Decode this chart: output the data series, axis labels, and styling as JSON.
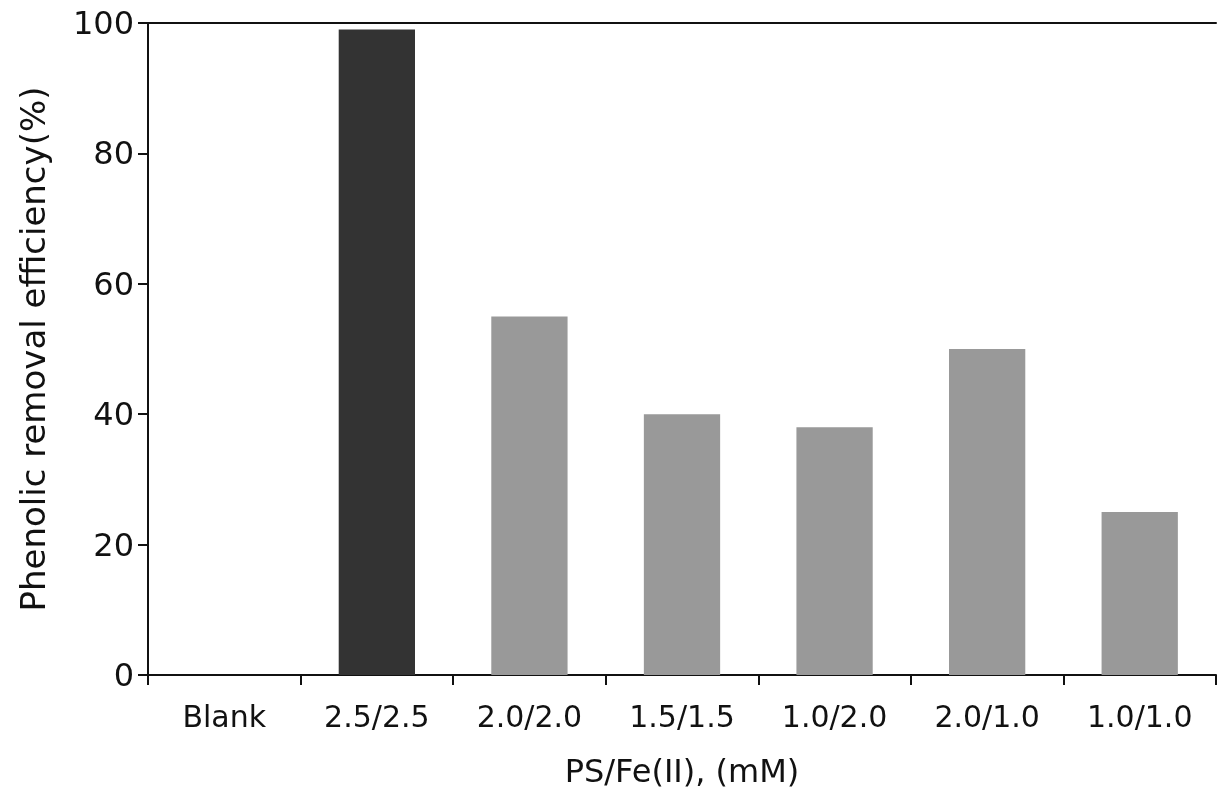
{
  "chart_data": {
    "type": "bar",
    "xlabel": "PS/Fe(II), (mM)",
    "ylabel": "Phenolic removal efficiency(%)",
    "categories": [
      "Blank",
      "2.5/2.5",
      "2.0/2.0",
      "1.5/1.5",
      "1.0/2.0",
      "2.0/1.0",
      "1.0/1.0"
    ],
    "values": [
      0,
      99,
      55,
      40,
      38,
      50,
      25
    ],
    "colors": [
      "#999999",
      "#333333",
      "#999999",
      "#999999",
      "#999999",
      "#999999",
      "#999999"
    ],
    "ylim": [
      0,
      100
    ],
    "yticks": [
      0,
      20,
      40,
      60,
      80,
      100
    ],
    "grid": false
  }
}
